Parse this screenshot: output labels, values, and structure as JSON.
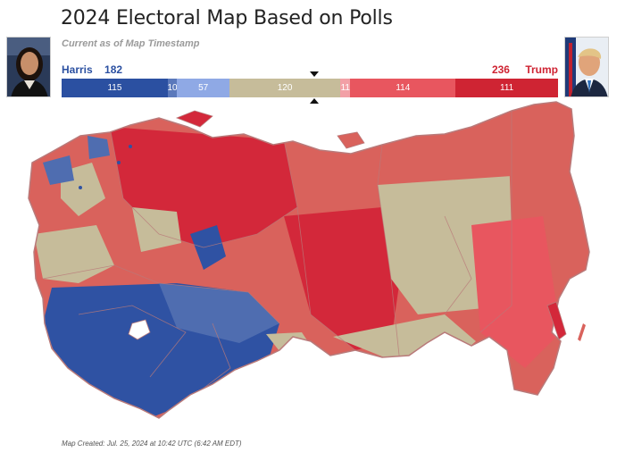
{
  "title": "2024 Electoral Map Based on Polls",
  "subtitle": "Current as of Map Timestamp",
  "harris": {
    "name": "Harris",
    "electoral_votes": "182",
    "color": "#2b50a1"
  },
  "trump": {
    "name": "Trump",
    "electoral_votes": "236",
    "color": "#cf2433"
  },
  "bar_segments": [
    {
      "label": "115",
      "value": 115,
      "color": "#2b50a1",
      "text_color": "#ffffff",
      "category": "Safe Harris"
    },
    {
      "label": "10",
      "value": 10,
      "color": "#5b79bb",
      "text_color": "#ffffff",
      "category": "Likely Harris"
    },
    {
      "label": "57",
      "value": 57,
      "color": "#8fa9e5",
      "text_color": "#ffffff",
      "category": "Leans Harris"
    },
    {
      "label": "120",
      "value": 120,
      "color": "#c6bc9a",
      "text_color": "#ffffff",
      "category": "Toss-up"
    },
    {
      "label": "11",
      "value": 11,
      "color": "#f2a0a6",
      "text_color": "#ffffff",
      "category": "Leans Trump"
    },
    {
      "label": "114",
      "value": 114,
      "color": "#e8565f",
      "text_color": "#ffffff",
      "category": "Likely Trump"
    },
    {
      "label": "111",
      "value": 111,
      "color": "#cf2433",
      "text_color": "#ffffff",
      "category": "Safe Trump"
    }
  ],
  "map_colors": {
    "safe_harris": "#2f52a3",
    "likely_harris": "#4f6db0",
    "toss_up": "#c6bc9a",
    "likely_trump": "#d9625c",
    "safe_trump": "#d3283a",
    "border": "#b97a7a"
  },
  "footer": "Map Created: Jul. 25, 2024 at 10:42 UTC (6:42 AM EDT)"
}
